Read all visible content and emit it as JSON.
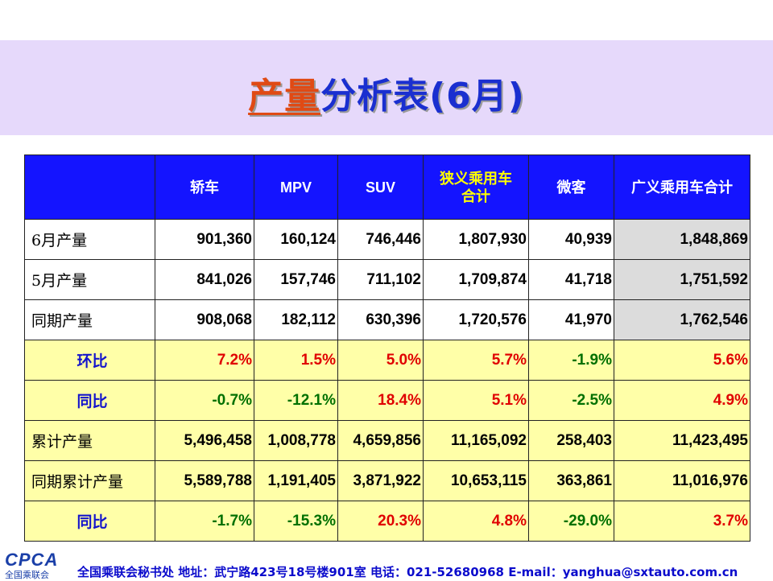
{
  "title": {
    "accent": "产量",
    "rest": "分析表(6月)"
  },
  "table": {
    "headers": [
      "",
      "轿车",
      "MPV",
      "SUV",
      "狭义乘用车\n合计",
      "微客",
      "广义乘用车合计"
    ],
    "rows": [
      {
        "label": "6月产量",
        "values": [
          "901,360",
          "160,124",
          "746,446",
          "1,807,930",
          "40,939",
          "1,848,869"
        ]
      },
      {
        "label": "5月产量",
        "values": [
          "841,026",
          "157,746",
          "711,102",
          "1,709,874",
          "41,718",
          "1,751,592"
        ]
      },
      {
        "label": "同期产量",
        "values": [
          "908,068",
          "182,112",
          "630,396",
          "1,720,576",
          "41,970",
          "1,762,546"
        ]
      },
      {
        "label": "环比",
        "values": [
          "7.2%",
          "1.5%",
          "5.0%",
          "5.7%",
          "-1.9%",
          "5.6%"
        ]
      },
      {
        "label": "同比",
        "values": [
          "-0.7%",
          "-12.1%",
          "18.4%",
          "5.1%",
          "-2.5%",
          "4.9%"
        ]
      },
      {
        "label": "累计产量",
        "values": [
          "5,496,458",
          "1,008,778",
          "4,659,856",
          "11,165,092",
          "258,403",
          "11,423,495"
        ]
      },
      {
        "label": "同期累计产量",
        "values": [
          "5,589,788",
          "1,191,405",
          "3,871,922",
          "10,653,115",
          "363,861",
          "11,016,976"
        ]
      },
      {
        "label": "同比",
        "values": [
          "-1.7%",
          "-15.3%",
          "20.3%",
          "4.8%",
          "-29.0%",
          "3.7%"
        ]
      }
    ]
  },
  "footer": {
    "logo_text": "CPCA",
    "logo_subtext": "全国乘联会",
    "text": "全国乘联会秘书处  地址：武宁路423号18号楼901室    电话：021-52680968   E-mail：yanghua@sxtauto.com.cn"
  },
  "colors": {
    "header_bg": "#1414ff",
    "highlight_row": "#ffffa8",
    "positive": "#e00000",
    "negative": "#007000",
    "title_band": "#e6d9fb"
  }
}
